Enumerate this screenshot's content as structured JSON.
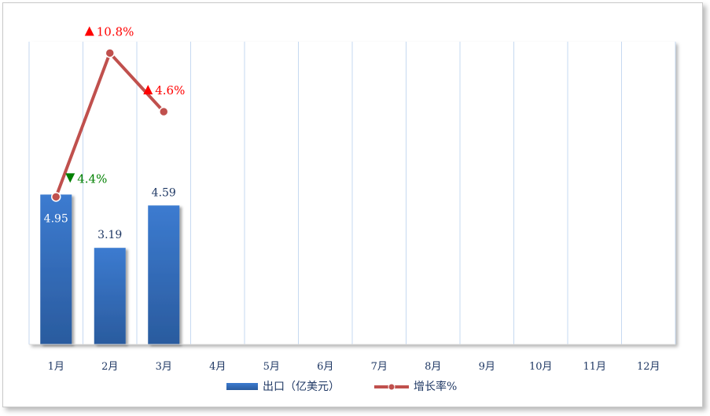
{
  "chart_data": {
    "type": "bar",
    "categories": [
      "1月",
      "2月",
      "3月",
      "4月",
      "5月",
      "6月",
      "7月",
      "8月",
      "9月",
      "10月",
      "11月",
      "12月"
    ],
    "series": [
      {
        "name": "出口（亿美元）",
        "type": "bar",
        "values": [
          4.95,
          3.19,
          4.59,
          null,
          null,
          null,
          null,
          null,
          null,
          null,
          null,
          null
        ],
        "labels": [
          "4.95",
          "3.19",
          "4.59"
        ],
        "color": "#2e67b5"
      },
      {
        "name": "增长率%",
        "type": "line",
        "values": [
          -4.4,
          10.8,
          4.6,
          null,
          null,
          null,
          null,
          null,
          null,
          null,
          null,
          null
        ],
        "labels": [
          "4.4%",
          "10.8%",
          "4.6%"
        ],
        "label_directions": [
          "down",
          "up",
          "up"
        ],
        "color": "#c0504d"
      }
    ],
    "bar_ylim": [
      0,
      10
    ],
    "line_ylim": [
      -20,
      12
    ],
    "colors": {
      "up": "#ff0000",
      "down": "#008000",
      "axis_text": "#1f3864",
      "grid": "#c6d9f1"
    },
    "grid": true,
    "legend_position": "bottom"
  }
}
